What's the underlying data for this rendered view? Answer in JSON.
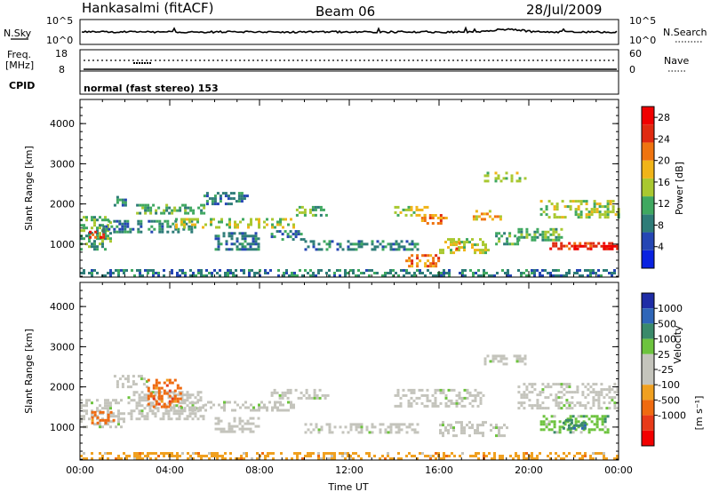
{
  "header": {
    "station": "Hankasalmi (fitACF)",
    "beam": "Beam 06",
    "date": "28/Jul/2009"
  },
  "top_panels": {
    "nsky_label": "N.Sky",
    "nsky_ticks": [
      "10^5",
      "10^0"
    ],
    "nsearch_label": "N.Search",
    "nsearch_ticks": [
      "10^5",
      "10^0"
    ],
    "freq_label": "Freq.",
    "freq_unit": "[MHz]",
    "freq_ticks": [
      "18",
      "8"
    ],
    "nave_label": "Nave",
    "nave_ticks": [
      "60",
      "0"
    ],
    "cpid_label": "CPID",
    "cpid_text": "normal (fast stereo) 153"
  },
  "x_axis": {
    "label": "Time UT",
    "ticks": [
      "00:00",
      "04:00",
      "08:00",
      "12:00",
      "16:00",
      "20:00",
      "00:00"
    ]
  },
  "colors": {
    "power": [
      "#0a22e0",
      "#2546b4",
      "#2e7c78",
      "#3fa860",
      "#a9c830",
      "#f0b418",
      "#ef7410",
      "#e02a10",
      "#f00000"
    ],
    "velocity": [
      "#1e2ca6",
      "#2f66b8",
      "#3a8a6a",
      "#6dc33e",
      "#c4c4bc",
      "#c4c4bc",
      "#f0a020",
      "#ef6a10",
      "#e83a18",
      "#f20000"
    ]
  },
  "chart_data": [
    {
      "type": "heatmap",
      "name": "power-panel",
      "ylabel": "Slant Range [km]",
      "yticks": [
        1000,
        2000,
        3000,
        4000
      ],
      "ylim": [
        180,
        4600
      ],
      "xlim": [
        0,
        24
      ],
      "colorbar": {
        "label": "Power [dB]",
        "ticks": [
          4,
          8,
          12,
          16,
          20,
          24,
          28
        ],
        "range": [
          0,
          30
        ]
      },
      "bands": [
        {
          "t0": 0.0,
          "t1": 1.4,
          "r0": 900,
          "r1": 1700,
          "level": 3
        },
        {
          "t0": 0.4,
          "t1": 1.0,
          "r0": 1150,
          "r1": 1400,
          "level": 7
        },
        {
          "t0": 1.5,
          "t1": 2.0,
          "r0": 1950,
          "r1": 2200,
          "level": 2
        },
        {
          "t0": 1.0,
          "t1": 5.0,
          "r0": 1300,
          "r1": 1600,
          "level": 2
        },
        {
          "t0": 2.5,
          "t1": 5.5,
          "r0": 1750,
          "r1": 2000,
          "level": 3
        },
        {
          "t0": 4.0,
          "t1": 9.5,
          "r0": 1450,
          "r1": 1650,
          "level": 4
        },
        {
          "t0": 5.5,
          "t1": 7.5,
          "r0": 2000,
          "r1": 2300,
          "level": 2
        },
        {
          "t0": 6.0,
          "t1": 8.0,
          "r0": 900,
          "r1": 1300,
          "level": 2
        },
        {
          "t0": 8.5,
          "t1": 10.0,
          "r0": 1150,
          "r1": 1350,
          "level": 2
        },
        {
          "t0": 9.5,
          "t1": 11.0,
          "r0": 1750,
          "r1": 1950,
          "level": 3
        },
        {
          "t0": 10.0,
          "t1": 15.0,
          "r0": 900,
          "r1": 1100,
          "level": 2
        },
        {
          "t0": 14.0,
          "t1": 15.5,
          "r0": 1700,
          "r1": 1950,
          "level": 4
        },
        {
          "t0": 15.2,
          "t1": 16.3,
          "r0": 1500,
          "r1": 1750,
          "level": 6
        },
        {
          "t0": 16.0,
          "t1": 18.2,
          "r0": 800,
          "r1": 1150,
          "level": 4
        },
        {
          "t0": 16.5,
          "t1": 17.0,
          "r0": 900,
          "r1": 1050,
          "level": 6
        },
        {
          "t0": 14.5,
          "t1": 16.0,
          "r0": 450,
          "r1": 750,
          "level": 6
        },
        {
          "t0": 17.5,
          "t1": 18.8,
          "r0": 1600,
          "r1": 1850,
          "level": 5
        },
        {
          "t0": 18.0,
          "t1": 19.8,
          "r0": 2600,
          "r1": 2800,
          "level": 4
        },
        {
          "t0": 18.5,
          "t1": 19.5,
          "r0": 1000,
          "r1": 1300,
          "level": 3
        },
        {
          "t0": 19.5,
          "t1": 21.5,
          "r0": 1100,
          "r1": 1400,
          "level": 3
        },
        {
          "t0": 20.5,
          "t1": 24.0,
          "r0": 1700,
          "r1": 2100,
          "level": 4
        },
        {
          "t0": 20.8,
          "t1": 24.0,
          "r0": 900,
          "r1": 1050,
          "level": 7
        },
        {
          "t0": 22.0,
          "t1": 24.0,
          "r0": 850,
          "r1": 980,
          "level": 8
        },
        {
          "t0": 0.0,
          "t1": 24.0,
          "r0": 190,
          "r1": 380,
          "level": 2
        }
      ]
    },
    {
      "type": "heatmap",
      "name": "velocity-panel",
      "ylabel": "Slant Range [km]",
      "yticks": [
        1000,
        2000,
        3000,
        4000
      ],
      "ylim": [
        180,
        4600
      ],
      "xlim": [
        0,
        24
      ],
      "colorbar": {
        "label": "Velocity",
        "unit": "[m s⁻¹]",
        "ticks": [
          1000,
          500,
          100,
          25,
          -25,
          -100,
          -500,
          -1000
        ]
      },
      "bands": [
        {
          "t0": 0.0,
          "t1": 2.0,
          "r0": 1000,
          "r1": 1700,
          "cls": 4
        },
        {
          "t0": 2.0,
          "t1": 5.5,
          "r0": 1200,
          "r1": 1900,
          "cls": 4
        },
        {
          "t0": 1.5,
          "t1": 3.0,
          "r0": 2000,
          "r1": 2300,
          "cls": 4
        },
        {
          "t0": 3.0,
          "t1": 4.5,
          "r0": 1500,
          "r1": 2200,
          "cls": 7
        },
        {
          "t0": 0.5,
          "t1": 1.5,
          "r0": 1100,
          "r1": 1400,
          "cls": 7
        },
        {
          "t0": 4.0,
          "t1": 9.5,
          "r0": 1450,
          "r1": 1650,
          "cls": 4
        },
        {
          "t0": 6.0,
          "t1": 8.0,
          "r0": 900,
          "r1": 1250,
          "cls": 4
        },
        {
          "t0": 8.5,
          "t1": 11.0,
          "r0": 1700,
          "r1": 1950,
          "cls": 4
        },
        {
          "t0": 10.0,
          "t1": 15.0,
          "r0": 900,
          "r1": 1100,
          "cls": 4
        },
        {
          "t0": 14.0,
          "t1": 18.0,
          "r0": 1500,
          "r1": 1950,
          "cls": 4
        },
        {
          "t0": 16.0,
          "t1": 19.0,
          "r0": 800,
          "r1": 1150,
          "cls": 4
        },
        {
          "t0": 18.0,
          "t1": 19.8,
          "r0": 2600,
          "r1": 2800,
          "cls": 4
        },
        {
          "t0": 19.5,
          "t1": 24.0,
          "r0": 1500,
          "r1": 2100,
          "cls": 4
        },
        {
          "t0": 20.5,
          "t1": 23.5,
          "r0": 900,
          "r1": 1300,
          "cls": 3
        },
        {
          "t0": 21.5,
          "t1": 22.5,
          "r0": 1000,
          "r1": 1200,
          "cls": 2
        },
        {
          "t0": 0.0,
          "t1": 24.0,
          "r0": 190,
          "r1": 380,
          "cls": 6
        }
      ]
    }
  ]
}
